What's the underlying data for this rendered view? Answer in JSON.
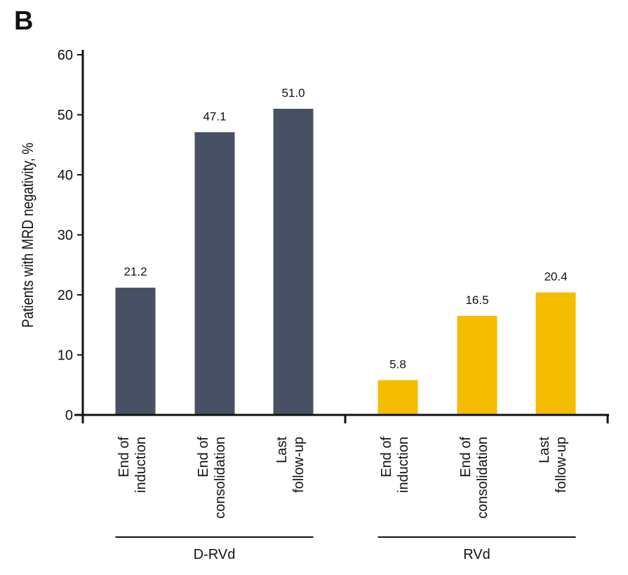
{
  "panel_label": "B",
  "chart_data": {
    "type": "bar",
    "ylabel": "Patients with MRD negativity, %",
    "ylim": [
      0,
      60
    ],
    "yticks": [
      0,
      10,
      20,
      30,
      40,
      50,
      60
    ],
    "groups": [
      {
        "name": "D-RVd",
        "color": "#485163",
        "categories": [
          [
            "End of",
            "induction"
          ],
          [
            "End of",
            "consolidation"
          ],
          [
            "Last",
            "follow-up"
          ]
        ],
        "values": [
          21.2,
          47.1,
          51.0
        ],
        "labels": [
          "21.2",
          "47.1",
          "51.0"
        ]
      },
      {
        "name": "RVd",
        "color": "#F5BD00",
        "categories": [
          [
            "End of",
            "induction"
          ],
          [
            "End of",
            "consolidation"
          ],
          [
            "Last",
            "follow-up"
          ]
        ],
        "values": [
          5.8,
          16.5,
          20.4
        ],
        "labels": [
          "5.8",
          "16.5",
          "20.4"
        ]
      }
    ]
  }
}
